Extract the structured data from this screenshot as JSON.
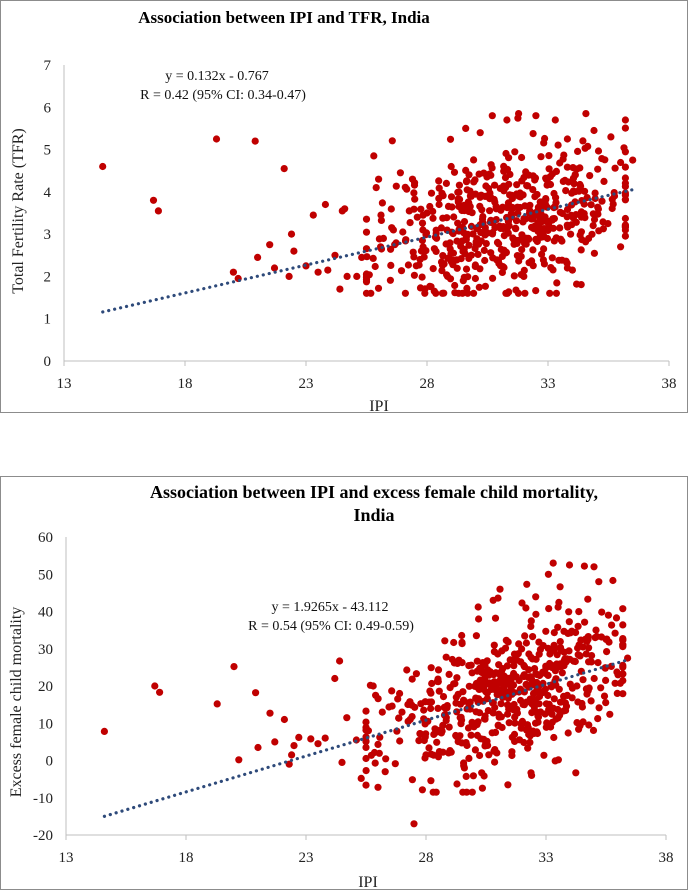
{
  "chart_data": [
    {
      "type": "scatter",
      "title": "Association between IPI and TFR, India",
      "xlabel": "IPI",
      "ylabel": "Total Fertility Rate (TFR)",
      "xlim": [
        13,
        38
      ],
      "ylim": [
        0,
        7
      ],
      "xticks": [
        "13",
        "18",
        "23",
        "28",
        "33",
        "38"
      ],
      "yticks": [
        "0",
        "1",
        "2",
        "3",
        "4",
        "5",
        "6",
        "7"
      ],
      "annotations": [
        "y = 0.132x - 0.767",
        "R = 0.42 (95% CI: 0.34-0.47)"
      ],
      "marker_color": "#c00000",
      "trend_color": "#2e4a7a",
      "trend": {
        "slope": 0.132,
        "intercept": -0.767,
        "x_range": [
          14.6,
          36.5
        ]
      },
      "cloud": {
        "seed": 11,
        "n": 560,
        "x_mean": 31.2,
        "x_sd": 2.6,
        "x_min": 25.5,
        "x_max": 36.2,
        "noise_sd": 0.85,
        "y_min": 1.6,
        "y_max": 5.85
      },
      "points": [
        [
          14.6,
          4.6
        ],
        [
          16.7,
          3.8
        ],
        [
          16.9,
          3.55
        ],
        [
          19.3,
          5.25
        ],
        [
          20.0,
          2.1
        ],
        [
          20.2,
          1.95
        ],
        [
          20.9,
          5.2
        ],
        [
          21.0,
          2.45
        ],
        [
          21.5,
          2.75
        ],
        [
          21.7,
          2.2
        ],
        [
          22.1,
          4.55
        ],
        [
          22.3,
          2.0
        ],
        [
          22.4,
          3.0
        ],
        [
          22.5,
          2.6
        ],
        [
          23.0,
          2.25
        ],
        [
          23.3,
          3.45
        ],
        [
          23.5,
          2.1
        ],
        [
          23.8,
          3.7
        ],
        [
          23.9,
          2.15
        ],
        [
          24.2,
          2.5
        ],
        [
          24.4,
          1.7
        ],
        [
          24.5,
          3.55
        ],
        [
          24.6,
          3.6
        ],
        [
          24.7,
          2.0
        ],
        [
          25.1,
          2.0
        ],
        [
          25.3,
          2.45
        ],
        [
          25.8,
          4.85
        ],
        [
          25.9,
          4.1
        ],
        [
          26.0,
          4.3
        ],
        [
          26.1,
          3.45
        ],
        [
          26.2,
          2.9
        ],
        [
          26.9,
          4.45
        ],
        [
          27.0,
          3.05
        ],
        [
          27.4,
          4.3
        ],
        [
          27.6,
          3.4
        ],
        [
          28.0,
          3.5
        ],
        [
          28.3,
          1.65
        ],
        [
          28.5,
          3.7
        ],
        [
          28.8,
          4.2
        ],
        [
          29.0,
          4.6
        ],
        [
          29.6,
          5.5
        ],
        [
          30.2,
          5.4
        ],
        [
          30.7,
          5.8
        ],
        [
          31.3,
          5.7
        ],
        [
          32.5,
          5.8
        ],
        [
          33.3,
          5.7
        ],
        [
          34.9,
          5.45
        ],
        [
          35.6,
          5.3
        ],
        [
          36.0,
          2.7
        ],
        [
          36.5,
          4.75
        ],
        [
          32.0,
          2.0
        ],
        [
          30.0,
          1.95
        ],
        [
          29.5,
          1.9
        ],
        [
          33.8,
          2.2
        ]
      ]
    },
    {
      "type": "scatter",
      "title": "Association between IPI and excess female child mortality, India",
      "title_lines": [
        "Association between IPI and excess female child mortality,",
        "India"
      ],
      "xlabel": "IPI",
      "ylabel": "Excess female child mortality",
      "xlim": [
        13,
        38
      ],
      "ylim": [
        -20,
        60
      ],
      "xticks": [
        "13",
        "18",
        "23",
        "28",
        "33",
        "38"
      ],
      "yticks": [
        "-20",
        "-10",
        "0",
        "10",
        "20",
        "30",
        "40",
        "50",
        "60"
      ],
      "annotations": [
        "y = 1.9265x - 43.112",
        "R = 0.54 (95% CI: 0.49-0.59)"
      ],
      "marker_color": "#c00000",
      "trend_color": "#2e4a7a",
      "trend": {
        "slope": 1.9265,
        "intercept": -43.112,
        "x_range": [
          14.6,
          36.5
        ]
      },
      "cloud": {
        "seed": 23,
        "n": 560,
        "x_mean": 31.2,
        "x_sd": 2.6,
        "x_min": 25.5,
        "x_max": 36.2,
        "noise_sd": 9.5,
        "y_min": -8.5,
        "y_max": 53
      },
      "points": [
        [
          14.6,
          7.8
        ],
        [
          16.7,
          20.0
        ],
        [
          16.9,
          18.3
        ],
        [
          19.3,
          15.2
        ],
        [
          20.0,
          25.2
        ],
        [
          20.2,
          0.2
        ],
        [
          20.9,
          18.2
        ],
        [
          21.0,
          3.5
        ],
        [
          21.5,
          12.7
        ],
        [
          21.7,
          5.0
        ],
        [
          22.1,
          11.0
        ],
        [
          22.3,
          -1.0
        ],
        [
          22.4,
          1.5
        ],
        [
          22.5,
          4.0
        ],
        [
          22.7,
          6.2
        ],
        [
          23.2,
          5.8
        ],
        [
          23.5,
          4.5
        ],
        [
          23.8,
          6.0
        ],
        [
          24.2,
          22.0
        ],
        [
          24.4,
          26.7
        ],
        [
          24.5,
          -0.5
        ],
        [
          24.7,
          11.5
        ],
        [
          25.1,
          5.5
        ],
        [
          25.3,
          -4.8
        ],
        [
          25.6,
          8.0
        ],
        [
          25.8,
          20.0
        ],
        [
          25.9,
          17.5
        ],
        [
          26.0,
          -7.2
        ],
        [
          26.3,
          -3.0
        ],
        [
          26.9,
          18.0
        ],
        [
          27.0,
          13.0
        ],
        [
          27.2,
          24.3
        ],
        [
          27.5,
          -17.0
        ],
        [
          27.6,
          23.3
        ],
        [
          28.0,
          1.5
        ],
        [
          28.3,
          -8.5
        ],
        [
          28.5,
          14.0
        ],
        [
          29.5,
          31.7
        ],
        [
          30.1,
          33.5
        ],
        [
          30.8,
          43.0
        ],
        [
          31.0,
          43.6
        ],
        [
          32.2,
          47.3
        ],
        [
          33.3,
          53.0
        ],
        [
          33.1,
          50.0
        ],
        [
          34.6,
          52.2
        ],
        [
          35.0,
          52.0
        ],
        [
          35.2,
          48.0
        ],
        [
          35.6,
          39.0
        ],
        [
          36.4,
          27.5
        ],
        [
          32.4,
          -4.0
        ],
        [
          29.6,
          -2.0
        ],
        [
          36.0,
          23.0
        ]
      ]
    }
  ]
}
